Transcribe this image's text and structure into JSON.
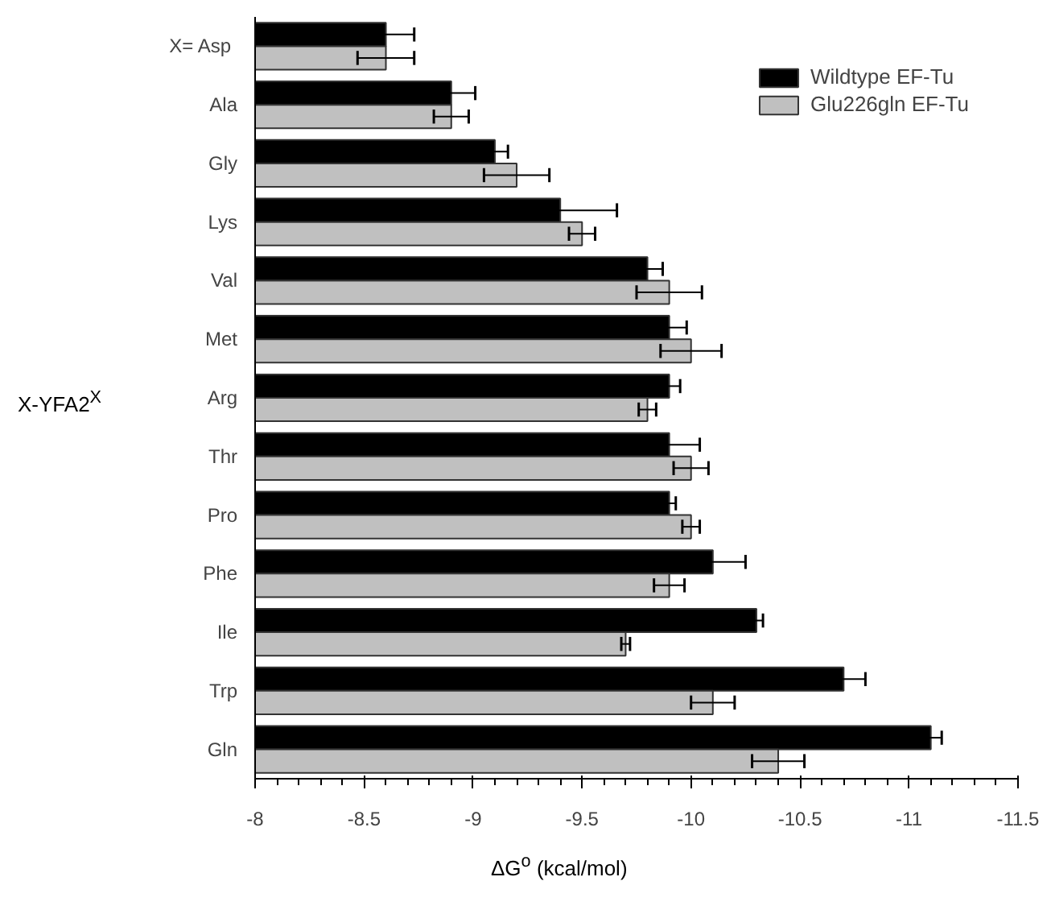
{
  "chart_data": {
    "type": "bar",
    "orientation": "horizontal",
    "xlabel": "ΔG$^{o}$ (kcal/mol)",
    "ylabel": "X-YFA2$^{X}$",
    "categories": [
      "X=  Asp",
      "Ala",
      "Gly",
      "Lys",
      "Val",
      "Met",
      "Arg",
      "Thr",
      "Pro",
      "Phe",
      "Ile",
      "Trp",
      "Gln"
    ],
    "series": [
      {
        "name": "Wildtype EF-Tu",
        "color": "#000000",
        "values": [
          -8.6,
          -8.9,
          -9.1,
          -9.4,
          -9.8,
          -9.9,
          -9.9,
          -9.9,
          -9.9,
          -10.1,
          -10.3,
          -10.7,
          -11.1
        ],
        "errors": [
          0.13,
          0.11,
          0.06,
          0.26,
          0.07,
          0.08,
          0.05,
          0.14,
          0.03,
          0.15,
          0.03,
          0.1,
          0.05
        ]
      },
      {
        "name": "Glu226gln EF-Tu",
        "color": "#c0c0c0",
        "values": [
          -8.6,
          -8.9,
          -9.2,
          -9.5,
          -9.9,
          -10.0,
          -9.8,
          -10.0,
          -10.0,
          -9.9,
          -9.7,
          -10.1,
          -10.4
        ],
        "errors": [
          0.13,
          0.08,
          0.15,
          0.06,
          0.15,
          0.14,
          0.04,
          0.08,
          0.04,
          0.07,
          0.02,
          0.1,
          0.12
        ]
      }
    ],
    "xlim": [
      -8,
      -11.5
    ],
    "xticks": [
      -8,
      -8.5,
      -9,
      -9.5,
      -10,
      -10.5,
      -11,
      -11.5
    ],
    "grid": false,
    "legend": "top right"
  }
}
